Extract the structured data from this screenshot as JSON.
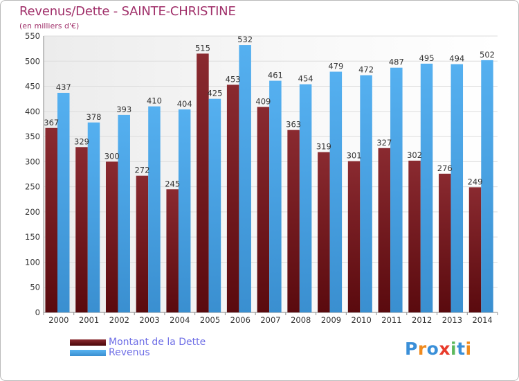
{
  "header": {
    "title": "Revenus/Dette - SAINTE-CHRISTINE",
    "subtitle": "(en milliers d'€)"
  },
  "legend": {
    "debt_label": "Montant de la Dette",
    "revenue_label": "Revenus"
  },
  "logo": {
    "letters": [
      "P",
      "r",
      "o",
      "x",
      "i",
      "t",
      "i"
    ],
    "colors": [
      "#3a8fd8",
      "#f08a1d",
      "#3a8fd8",
      "#e83a2a",
      "#5cb85c",
      "#3a8fd8",
      "#f08a1d"
    ]
  },
  "colors": {
    "debt": "#7a2025",
    "revenue": "#4aa6e8",
    "axis_text": "#333333",
    "grid": "#dcdcdc",
    "title": "#a0306a"
  },
  "chart_data": {
    "type": "bar",
    "categories": [
      "2000",
      "2001",
      "2002",
      "2003",
      "2004",
      "2005",
      "2006",
      "2007",
      "2008",
      "2009",
      "2010",
      "2011",
      "2012",
      "2013",
      "2014"
    ],
    "series": [
      {
        "name": "Montant de la Dette",
        "values": [
          367,
          329,
          300,
          272,
          245,
          515,
          453,
          409,
          363,
          319,
          301,
          327,
          302,
          276,
          249
        ]
      },
      {
        "name": "Revenus",
        "values": [
          437,
          378,
          393,
          410,
          404,
          425,
          532,
          461,
          454,
          479,
          472,
          487,
          495,
          494,
          502
        ]
      }
    ],
    "ylim": [
      0,
      550
    ],
    "yticks": [
      0,
      50,
      100,
      150,
      200,
      250,
      300,
      350,
      400,
      450,
      500,
      550
    ],
    "grid": true
  }
}
